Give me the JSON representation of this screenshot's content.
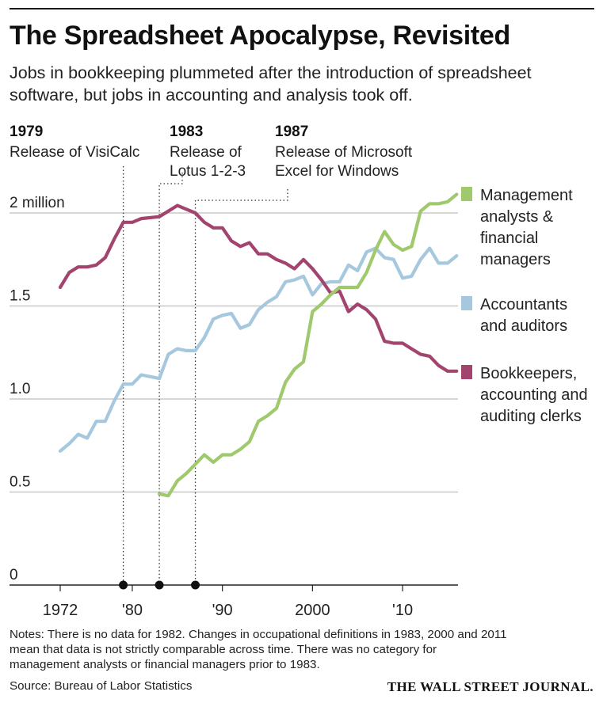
{
  "header": {
    "title": "The Spreadsheet Apocalypse, Revisited",
    "subtitle": "Jobs in bookkeeping plummeted after the introduction of spreadsheet software, but jobs in accounting and analysis took off."
  },
  "footer": {
    "notes": [
      "Notes: There is no data for 1982. Changes in occupational definitions in 1983, 2000 and 2011",
      "mean that data is not strictly comparable across time. There was no category for",
      "management analysts or financial managers prior to 1983."
    ],
    "source": "Source: Bureau of Labor Statistics",
    "brand": "THE WALL STREET JOURNAL."
  },
  "chart_data": {
    "type": "line",
    "title": "",
    "xlabel": "",
    "ylabel": "",
    "xlim": [
      1970,
      2017
    ],
    "ylim": [
      0,
      2.1
    ],
    "y_ticks": [
      {
        "value": 0,
        "label": "0"
      },
      {
        "value": 0.5,
        "label": "0.5"
      },
      {
        "value": 1.0,
        "label": "1.0"
      },
      {
        "value": 1.5,
        "label": "1.5"
      },
      {
        "value": 2.0,
        "label": "2 million"
      }
    ],
    "x_ticks": [
      {
        "value": 1972,
        "label": "1972"
      },
      {
        "value": 1980,
        "label": "'80"
      },
      {
        "value": 1990,
        "label": "'90"
      },
      {
        "value": 2000,
        "label": "2000"
      },
      {
        "value": 2010,
        "label": "'10"
      }
    ],
    "grid": true,
    "legend_placement": "right",
    "annotations": [
      {
        "year": 1979,
        "year_label": "1979",
        "lines": [
          "Release of VisiCalc"
        ]
      },
      {
        "year": 1983,
        "year_label": "1983",
        "lines": [
          "Release of",
          "Lotus 1-2-3"
        ]
      },
      {
        "year": 1987,
        "year_label": "1987",
        "lines": [
          "Release of Microsoft",
          "Excel for Windows"
        ]
      }
    ],
    "series": [
      {
        "legend_lines": [
          "Bookkeepers,",
          "accounting and",
          "auditing clerks"
        ],
        "color": "#a3446e",
        "x": [
          1972,
          1973,
          1974,
          1975,
          1976,
          1977,
          1978,
          1979,
          1980,
          1981,
          1983,
          1984,
          1985,
          1986,
          1987,
          1988,
          1989,
          1990,
          1991,
          1992,
          1993,
          1994,
          1995,
          1996,
          1997,
          1998,
          1999,
          2000,
          2001,
          2002,
          2003,
          2004,
          2005,
          2006,
          2007,
          2008,
          2009,
          2010,
          2011,
          2012,
          2013,
          2014,
          2015,
          2016
        ],
        "values": [
          1.6,
          1.68,
          1.71,
          1.71,
          1.72,
          1.76,
          1.86,
          1.95,
          1.95,
          1.97,
          1.98,
          2.01,
          2.04,
          2.02,
          2.0,
          1.95,
          1.92,
          1.92,
          1.85,
          1.82,
          1.84,
          1.78,
          1.78,
          1.75,
          1.73,
          1.7,
          1.75,
          1.7,
          1.64,
          1.57,
          1.58,
          1.47,
          1.51,
          1.48,
          1.43,
          1.31,
          1.3,
          1.3,
          1.27,
          1.24,
          1.23,
          1.18,
          1.15,
          1.15
        ]
      },
      {
        "legend_lines": [
          "Accountants",
          "and auditors"
        ],
        "color": "#a6c8de",
        "x": [
          1972,
          1973,
          1974,
          1975,
          1976,
          1977,
          1978,
          1979,
          1980,
          1981,
          1983,
          1984,
          1985,
          1986,
          1987,
          1988,
          1989,
          1990,
          1991,
          1992,
          1993,
          1994,
          1995,
          1996,
          1997,
          1998,
          1999,
          2000,
          2001,
          2002,
          2003,
          2004,
          2005,
          2006,
          2007,
          2008,
          2009,
          2010,
          2011,
          2012,
          2013,
          2014,
          2015,
          2016
        ],
        "values": [
          0.72,
          0.76,
          0.81,
          0.79,
          0.88,
          0.88,
          0.99,
          1.08,
          1.08,
          1.13,
          1.11,
          1.24,
          1.27,
          1.26,
          1.26,
          1.33,
          1.43,
          1.45,
          1.46,
          1.38,
          1.4,
          1.48,
          1.52,
          1.55,
          1.63,
          1.64,
          1.66,
          1.56,
          1.62,
          1.63,
          1.63,
          1.72,
          1.69,
          1.79,
          1.81,
          1.76,
          1.75,
          1.65,
          1.66,
          1.75,
          1.81,
          1.73,
          1.73,
          1.77
        ]
      },
      {
        "legend_lines": [
          "Management",
          "analysts &",
          "financial",
          "managers"
        ],
        "color": "#9fc96c",
        "x": [
          1983,
          1984,
          1985,
          1986,
          1987,
          1988,
          1989,
          1990,
          1991,
          1992,
          1993,
          1994,
          1995,
          1996,
          1997,
          1998,
          1999,
          2000,
          2001,
          2002,
          2003,
          2004,
          2005,
          2006,
          2007,
          2008,
          2009,
          2010,
          2011,
          2012,
          2013,
          2014,
          2015,
          2016
        ],
        "values": [
          0.49,
          0.48,
          0.56,
          0.6,
          0.65,
          0.7,
          0.66,
          0.7,
          0.7,
          0.73,
          0.77,
          0.88,
          0.91,
          0.95,
          1.09,
          1.16,
          1.2,
          1.47,
          1.51,
          1.56,
          1.6,
          1.6,
          1.6,
          1.68,
          1.8,
          1.9,
          1.83,
          1.8,
          1.82,
          2.01,
          2.05,
          2.05,
          2.06,
          2.1
        ]
      }
    ]
  }
}
